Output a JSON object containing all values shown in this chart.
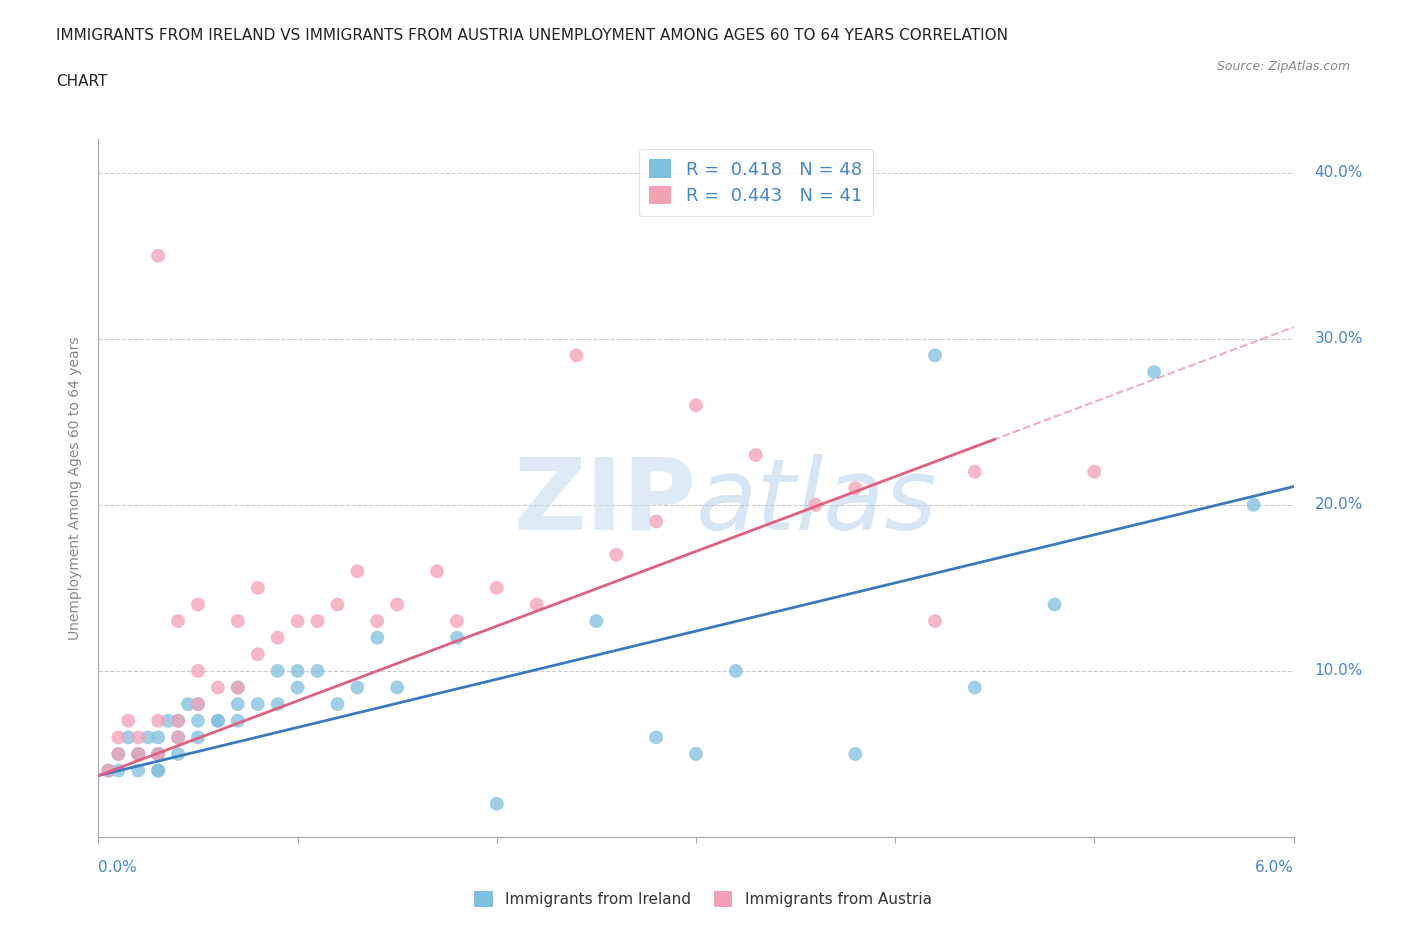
{
  "title_line1": "IMMIGRANTS FROM IRELAND VS IMMIGRANTS FROM AUSTRIA UNEMPLOYMENT AMONG AGES 60 TO 64 YEARS CORRELATION",
  "title_line2": "CHART",
  "source": "Source: ZipAtlas.com",
  "ylabel": "Unemployment Among Ages 60 to 64 years",
  "ireland_R": 0.418,
  "ireland_N": 48,
  "austria_R": 0.443,
  "austria_N": 41,
  "ireland_color": "#7fbfdf",
  "austria_color": "#f4a0b5",
  "ireland_trend_color": "#3a7abf",
  "austria_trend_color": "#e06080",
  "axis_label_color": "#4488cc",
  "grid_color": "#cccccc",
  "watermark_color": "#c8dff0",
  "xlim": [
    0,
    0.06
  ],
  "ylim": [
    0,
    0.42
  ],
  "yticks": [
    0.0,
    0.1,
    0.2,
    0.3,
    0.4
  ],
  "xticks": [
    0.0,
    0.01,
    0.02,
    0.03,
    0.04,
    0.05,
    0.06
  ],
  "ireland_x": [
    0.0005,
    0.001,
    0.001,
    0.0015,
    0.002,
    0.002,
    0.002,
    0.0025,
    0.003,
    0.003,
    0.003,
    0.003,
    0.003,
    0.0035,
    0.004,
    0.004,
    0.004,
    0.0045,
    0.005,
    0.005,
    0.005,
    0.006,
    0.006,
    0.007,
    0.007,
    0.007,
    0.008,
    0.009,
    0.009,
    0.01,
    0.01,
    0.011,
    0.012,
    0.013,
    0.014,
    0.015,
    0.018,
    0.02,
    0.025,
    0.028,
    0.03,
    0.032,
    0.038,
    0.042,
    0.044,
    0.048,
    0.053,
    0.058
  ],
  "ireland_y": [
    0.04,
    0.05,
    0.04,
    0.06,
    0.04,
    0.05,
    0.05,
    0.06,
    0.04,
    0.05,
    0.06,
    0.04,
    0.05,
    0.07,
    0.05,
    0.06,
    0.07,
    0.08,
    0.06,
    0.07,
    0.08,
    0.07,
    0.07,
    0.08,
    0.07,
    0.09,
    0.08,
    0.1,
    0.08,
    0.09,
    0.1,
    0.1,
    0.08,
    0.09,
    0.12,
    0.09,
    0.12,
    0.02,
    0.13,
    0.06,
    0.05,
    0.1,
    0.05,
    0.29,
    0.09,
    0.14,
    0.28,
    0.2
  ],
  "austria_x": [
    0.0005,
    0.001,
    0.001,
    0.0015,
    0.002,
    0.002,
    0.003,
    0.003,
    0.003,
    0.004,
    0.004,
    0.004,
    0.005,
    0.005,
    0.005,
    0.006,
    0.007,
    0.007,
    0.008,
    0.008,
    0.009,
    0.01,
    0.011,
    0.012,
    0.013,
    0.014,
    0.015,
    0.017,
    0.018,
    0.02,
    0.022,
    0.024,
    0.026,
    0.028,
    0.03,
    0.033,
    0.036,
    0.038,
    0.042,
    0.044,
    0.05
  ],
  "austria_y": [
    0.04,
    0.05,
    0.06,
    0.07,
    0.05,
    0.06,
    0.05,
    0.07,
    0.35,
    0.06,
    0.07,
    0.13,
    0.08,
    0.1,
    0.14,
    0.09,
    0.09,
    0.13,
    0.11,
    0.15,
    0.12,
    0.13,
    0.13,
    0.14,
    0.16,
    0.13,
    0.14,
    0.16,
    0.13,
    0.15,
    0.14,
    0.29,
    0.17,
    0.19,
    0.26,
    0.23,
    0.2,
    0.21,
    0.13,
    0.22,
    0.22
  ],
  "ireland_trend_intercept": 0.037,
  "ireland_trend_slope": 2.9,
  "austria_trend_intercept": 0.037,
  "austria_trend_slope": 4.5
}
